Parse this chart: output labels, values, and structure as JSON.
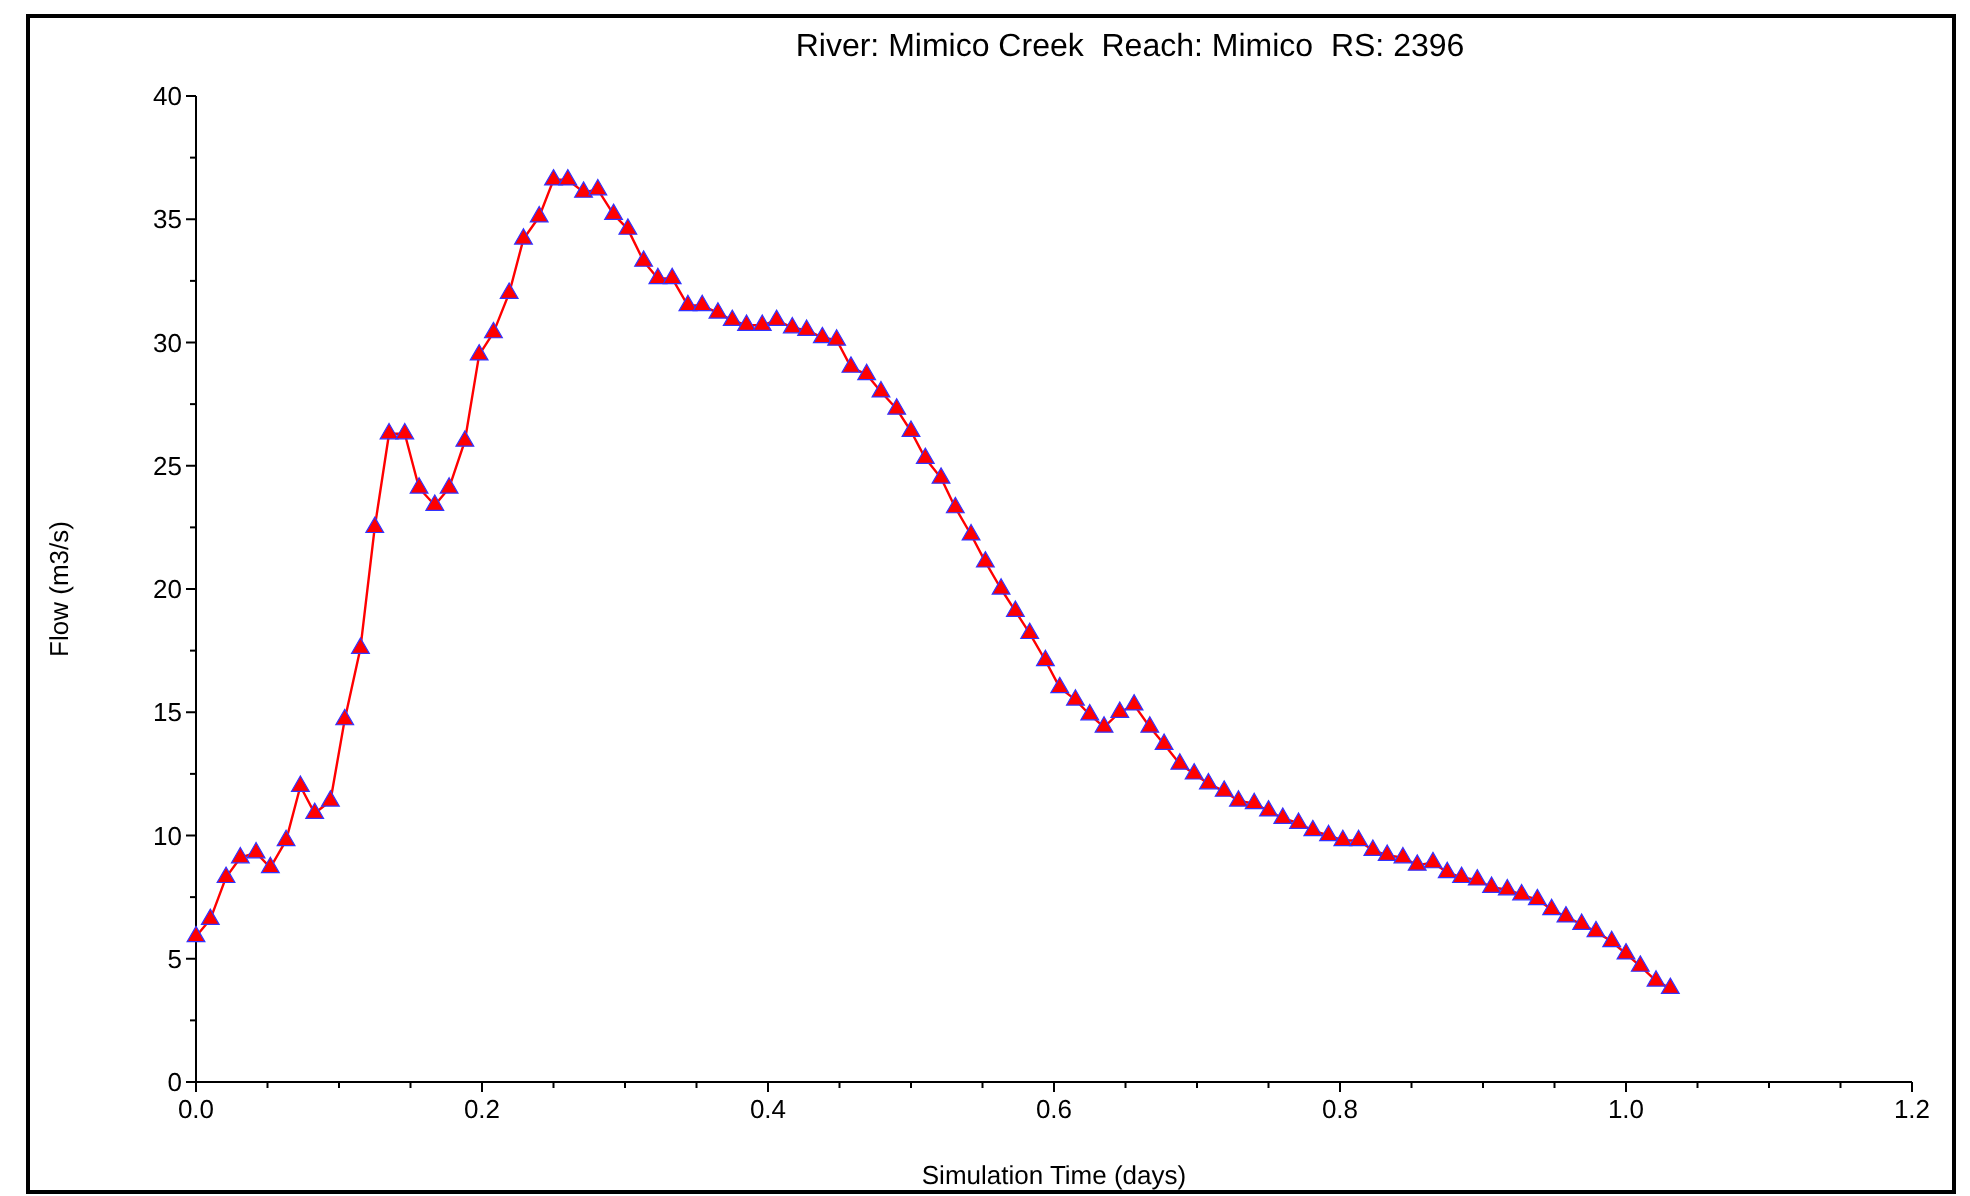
{
  "chart_data": {
    "type": "line",
    "title": "River: Mimico Creek  Reach: Mimico  RS: 2396",
    "xlabel": "Simulation Time (days)",
    "ylabel": "Flow (m3/s)",
    "x": [
      0,
      0.01,
      0.021,
      0.031,
      0.042,
      0.052,
      0.063,
      0.073,
      0.083,
      0.094,
      0.104,
      0.115,
      0.125,
      0.135,
      0.146,
      0.156,
      0.167,
      0.177,
      0.188,
      0.198,
      0.208,
      0.219,
      0.229,
      0.24,
      0.25,
      0.26,
      0.271,
      0.281,
      0.292,
      0.302,
      0.313,
      0.323,
      0.333,
      0.344,
      0.354,
      0.365,
      0.375,
      0.385,
      0.396,
      0.406,
      0.417,
      0.427,
      0.438,
      0.448,
      0.458,
      0.469,
      0.479,
      0.49,
      0.5,
      0.51,
      0.521,
      0.531,
      0.542,
      0.552,
      0.563,
      0.573,
      0.583,
      0.594,
      0.604,
      0.615,
      0.625,
      0.635,
      0.646,
      0.656,
      0.667,
      0.677,
      0.688,
      0.698,
      0.708,
      0.719,
      0.729,
      0.74,
      0.75,
      0.76,
      0.771,
      0.781,
      0.792,
      0.802,
      0.813,
      0.823,
      0.833,
      0.844,
      0.854,
      0.865,
      0.875,
      0.885,
      0.896,
      0.906,
      0.917,
      0.927,
      0.938,
      0.948,
      0.958,
      0.969,
      0.979,
      0.99,
      1.0,
      1.01,
      1.021,
      1.031
    ],
    "series": [
      {
        "color": "#ff0000",
        "values": [
          5.9,
          6.6,
          8.3,
          9.1,
          9.3,
          8.7,
          9.8,
          12.0,
          10.9,
          11.4,
          14.7,
          17.6,
          22.5,
          26.3,
          26.3,
          24.1,
          23.4,
          24.1,
          26.0,
          29.5,
          30.4,
          32.0,
          34.2,
          35.1,
          36.6,
          36.6,
          36.1,
          36.2,
          35.2,
          34.6,
          33.3,
          32.6,
          32.6,
          31.5,
          31.5,
          31.2,
          30.9,
          30.7,
          30.7,
          30.9,
          30.6,
          30.5,
          30.2,
          30.1,
          29.0,
          28.7,
          28.0,
          27.3,
          26.4,
          25.3,
          24.5,
          23.3,
          22.2,
          21.1,
          20.0,
          19.1,
          18.2,
          17.1,
          16.0,
          15.5,
          14.9,
          14.4,
          15.0,
          15.3,
          14.4,
          13.7,
          12.9,
          12.5,
          12.1,
          11.8,
          11.4,
          11.3,
          11.0,
          10.7,
          10.5,
          10.2,
          10.0,
          9.8,
          9.8,
          9.4,
          9.2,
          9.1,
          8.8,
          8.9,
          8.5,
          8.3,
          8.2,
          7.9,
          7.8,
          7.6,
          7.4,
          7.0,
          6.7,
          6.4,
          6.1,
          5.7,
          5.2,
          4.7,
          4.1,
          3.8
        ]
      }
    ],
    "xlim": [
      0,
      1.2
    ],
    "ylim": [
      0,
      40
    ],
    "xticks": [
      {
        "value": 0,
        "label": "0.0"
      },
      {
        "value": 0.05,
        "label": null
      },
      {
        "value": 0.1,
        "label": null
      },
      {
        "value": 0.15,
        "label": null
      },
      0.2,
      {
        "value": 0.25,
        "label": null
      },
      {
        "value": 0.3,
        "label": null
      },
      {
        "value": 0.35,
        "label": null
      },
      0.4,
      {
        "value": 0.45,
        "label": null
      },
      {
        "value": 0.5,
        "label": null
      },
      {
        "value": 0.55,
        "label": null
      },
      0.6,
      {
        "value": 0.65,
        "label": null
      },
      {
        "value": 0.7,
        "label": null
      },
      {
        "value": 0.75,
        "label": null
      },
      0.8,
      {
        "value": 0.85,
        "label": null
      },
      {
        "value": 0.9,
        "label": null
      },
      {
        "value": 0.95,
        "label": null
      },
      {
        "value": 1,
        "label": "1.0"
      },
      {
        "value": 1.05,
        "label": null
      },
      {
        "value": 1.1,
        "label": null
      },
      {
        "value": 1.15,
        "label": null
      },
      1.2
    ],
    "yticks": [
      0,
      {
        "value": 2.5,
        "label": null
      },
      5,
      {
        "value": 7.5,
        "label": null
      },
      10,
      {
        "value": 12.5,
        "label": null
      },
      15,
      {
        "value": 17.5,
        "label": null
      },
      20,
      {
        "value": 22.5,
        "label": null
      },
      25,
      {
        "value": 27.5,
        "label": null
      },
      30,
      {
        "value": 32.5,
        "label": null
      },
      35,
      {
        "value": 37.5,
        "label": null
      },
      40
    ],
    "grid": false,
    "marker": "triangle",
    "line_style": "solid"
  }
}
